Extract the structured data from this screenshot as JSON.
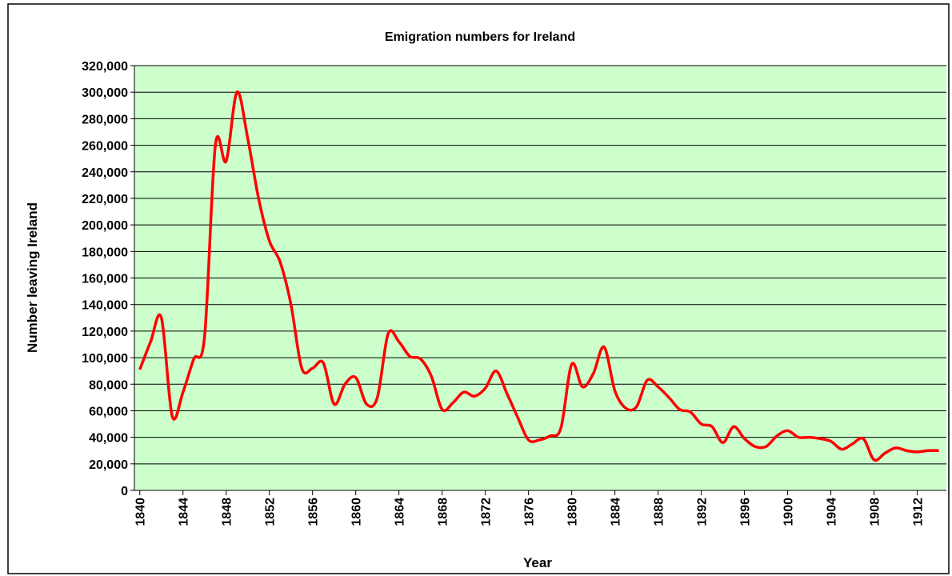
{
  "chart_data": {
    "type": "line",
    "title": "Emigration numbers for Ireland",
    "x_label": "Year",
    "y_label": "Number leaving Ireland",
    "x": [
      1840,
      1841,
      1842,
      1843,
      1844,
      1845,
      1846,
      1847,
      1848,
      1849,
      1850,
      1851,
      1852,
      1853,
      1854,
      1855,
      1856,
      1857,
      1858,
      1859,
      1860,
      1861,
      1862,
      1863,
      1864,
      1865,
      1866,
      1867,
      1868,
      1869,
      1870,
      1871,
      1872,
      1873,
      1874,
      1875,
      1876,
      1877,
      1878,
      1879,
      1880,
      1881,
      1882,
      1883,
      1884,
      1885,
      1886,
      1887,
      1888,
      1889,
      1890,
      1891,
      1892,
      1893,
      1894,
      1895,
      1896,
      1897,
      1898,
      1899,
      1900,
      1901,
      1902,
      1903,
      1904,
      1905,
      1906,
      1907,
      1908,
      1909,
      1910,
      1911,
      1912,
      1913,
      1914
    ],
    "series": [
      {
        "name": "Emigration",
        "color": "#ff0000",
        "values": [
          91000,
          112000,
          130000,
          56000,
          74000,
          99000,
          116000,
          260000,
          248000,
          300000,
          265000,
          220000,
          188000,
          172000,
          140000,
          92000,
          92000,
          96000,
          65000,
          80000,
          85000,
          65000,
          70000,
          118000,
          112000,
          101000,
          99000,
          86000,
          61000,
          66000,
          74000,
          71000,
          77000,
          90000,
          73000,
          55000,
          38000,
          38000,
          41000,
          47000,
          95000,
          78000,
          88000,
          108000,
          75000,
          62000,
          63000,
          83000,
          78000,
          70000,
          61000,
          59000,
          50000,
          48000,
          36000,
          48000,
          39000,
          33000,
          33000,
          41000,
          45000,
          40000,
          40000,
          39000,
          37000,
          31000,
          35000,
          39000,
          23000,
          28000,
          32000,
          30000,
          29000,
          30000,
          30000
        ]
      }
    ],
    "xlim": [
      1839.5,
      1914.7
    ],
    "xticks": [
      1840,
      1844,
      1848,
      1852,
      1856,
      1860,
      1864,
      1868,
      1872,
      1876,
      1880,
      1884,
      1888,
      1892,
      1896,
      1900,
      1904,
      1908,
      1912
    ],
    "ylim": [
      0,
      320000
    ],
    "yticks": [
      0,
      {
        "value": 20000,
        "label": "20,000"
      },
      {
        "value": 40000,
        "label": "40,000"
      },
      {
        "value": 60000,
        "label": "60,000"
      },
      {
        "value": 80000,
        "label": "80,000"
      },
      {
        "value": 100000,
        "label": "100,000"
      },
      {
        "value": 120000,
        "label": "120,000"
      },
      {
        "value": 140000,
        "label": "140,000"
      },
      {
        "value": 160000,
        "label": "160,000"
      },
      {
        "value": 180000,
        "label": "180,000"
      },
      {
        "value": 200000,
        "label": "200,000"
      },
      {
        "value": 220000,
        "label": "220,000"
      },
      {
        "value": 240000,
        "label": "240,000"
      },
      {
        "value": 260000,
        "label": "260,000"
      },
      {
        "value": 280000,
        "label": "280,000"
      },
      {
        "value": 300000,
        "label": "300,000"
      },
      {
        "value": 320000,
        "label": "320,000"
      }
    ],
    "grid": true,
    "plot_background": "#ccffcc"
  }
}
